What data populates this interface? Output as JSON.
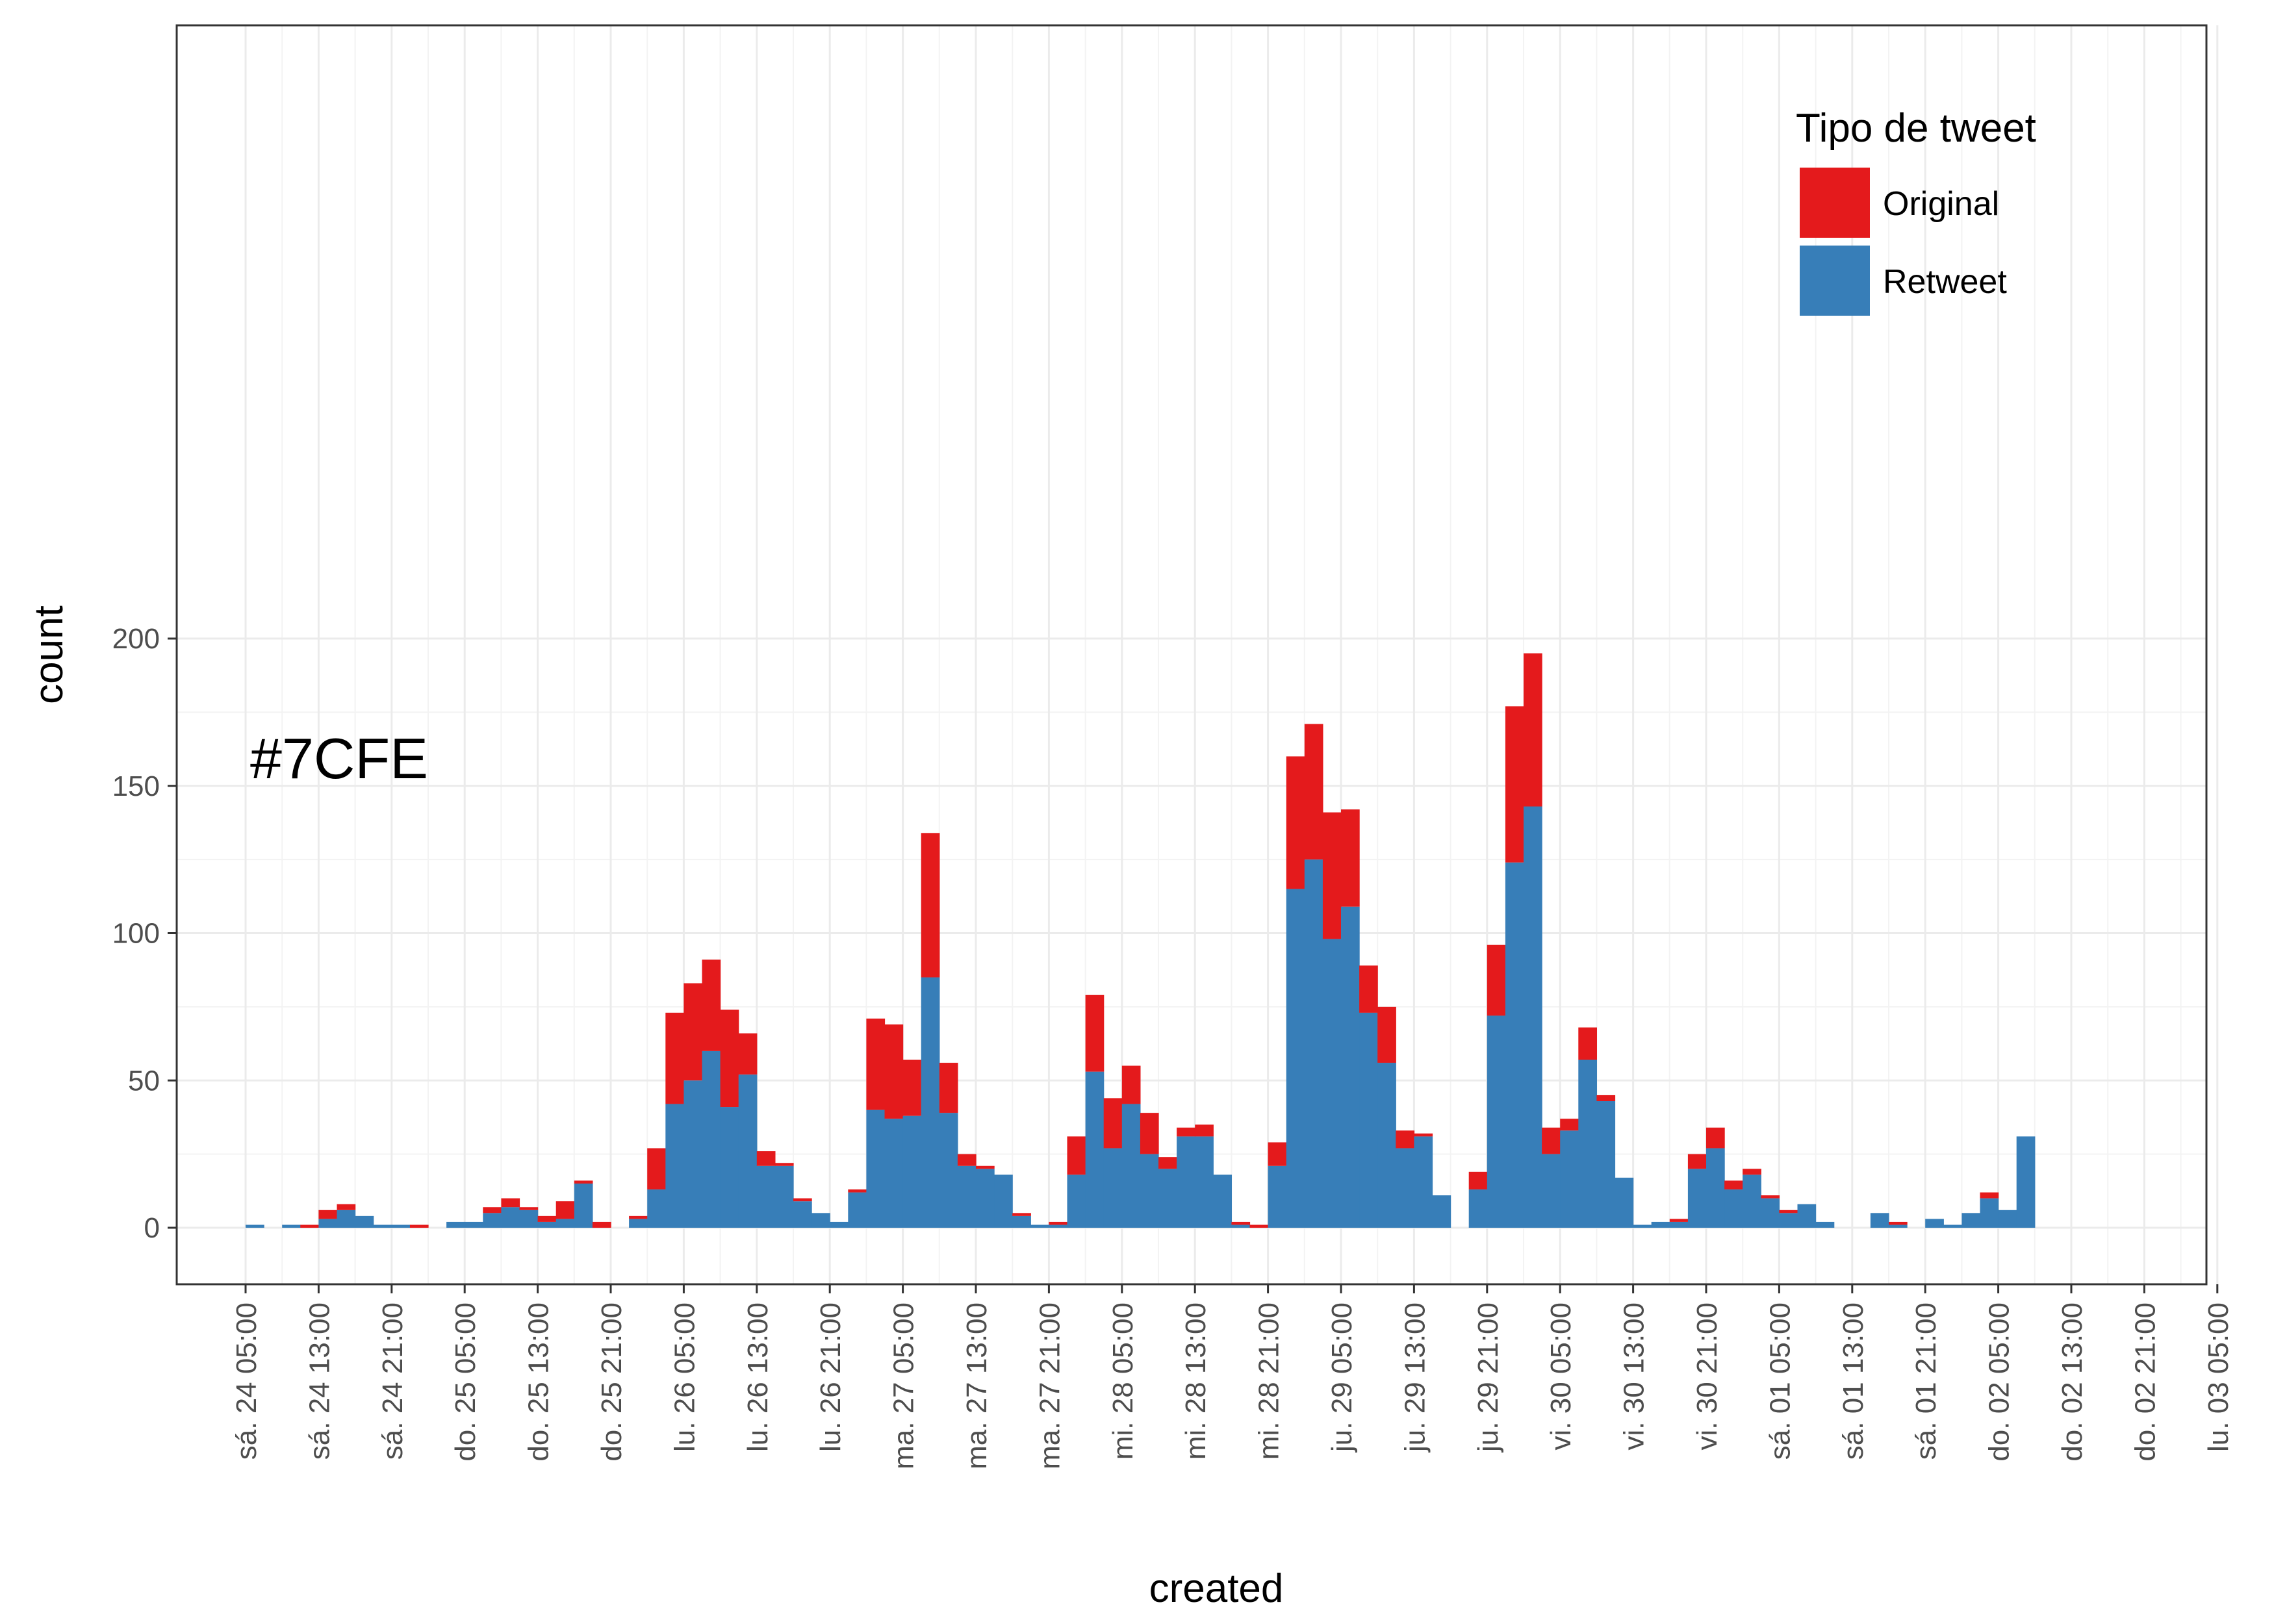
{
  "chart_data": {
    "type": "bar",
    "stacked": true,
    "xlabel": "created",
    "ylabel": "count",
    "ylim": [
      -9.6,
      204.6
    ],
    "y_ticks": [
      0,
      50,
      100,
      150,
      200
    ],
    "x_tick_labels": [
      "sá. 24 05:00",
      "sá. 24 13:00",
      "sá. 24 21:00",
      "do. 25 05:00",
      "do. 25 13:00",
      "do. 25 21:00",
      "lu. 26 05:00",
      "lu. 26 13:00",
      "lu. 26 21:00",
      "ma. 27 05:00",
      "ma. 27 13:00",
      "ma. 27 21:00",
      "mi. 28 05:00",
      "mi. 28 13:00",
      "mi. 28 21:00",
      "ju. 29 05:00",
      "ju. 29 13:00",
      "ju. 29 21:00",
      "vi. 30 05:00",
      "vi. 30 13:00",
      "vi. 30 21:00",
      "sá. 01 05:00",
      "sá. 01 13:00",
      "sá. 01 21:00",
      "do. 02 05:00",
      "do. 02 13:00",
      "do. 02 21:00",
      "lu. 03 05:00"
    ],
    "bin_hours": 2,
    "x_start_hours": 0,
    "x_end_hours": 216,
    "annotation": "#7CFE",
    "legend": {
      "title": "Tipo de tweet",
      "position": "top-right"
    },
    "grid": true,
    "series": [
      {
        "name": "Retweet",
        "color": "#377eb8",
        "values": [
          1,
          0,
          1,
          0,
          3,
          6,
          4,
          1,
          1,
          0,
          0,
          2,
          2,
          5,
          7,
          6,
          2,
          3,
          15,
          0,
          0,
          3,
          13,
          42,
          50,
          60,
          41,
          52,
          21,
          21,
          9,
          5,
          2,
          12,
          40,
          37,
          38,
          85,
          39,
          21,
          20,
          18,
          4,
          1,
          1,
          18,
          53,
          27,
          42,
          25,
          20,
          31,
          31,
          18,
          1,
          0,
          21,
          115,
          125,
          98,
          109,
          73,
          56,
          27,
          31,
          11,
          0,
          13,
          72,
          124,
          143,
          25,
          33,
          57,
          43,
          17,
          1,
          2,
          2,
          20,
          27,
          13,
          18,
          10,
          5,
          8,
          2,
          0,
          0,
          5,
          1,
          0,
          3,
          1,
          5,
          10,
          6,
          31
        ]
      },
      {
        "name": "Original",
        "color": "#e41a1c",
        "values": [
          0,
          0,
          0,
          1,
          3,
          2,
          0,
          0,
          0,
          1,
          0,
          0,
          0,
          2,
          3,
          1,
          2,
          6,
          1,
          2,
          0,
          1,
          14,
          31,
          33,
          31,
          33,
          14,
          5,
          1,
          1,
          0,
          0,
          1,
          31,
          32,
          19,
          49,
          17,
          4,
          1,
          0,
          1,
          0,
          1,
          13,
          26,
          17,
          13,
          14,
          4,
          3,
          4,
          0,
          1,
          1,
          8,
          45,
          46,
          43,
          33,
          16,
          19,
          6,
          1,
          0,
          0,
          6,
          24,
          53,
          52,
          9,
          4,
          11,
          2,
          0,
          0,
          0,
          1,
          5,
          7,
          3,
          2,
          1,
          1,
          0,
          0,
          0,
          0,
          0,
          1,
          0,
          0,
          0,
          0,
          2,
          0,
          0
        ]
      }
    ]
  }
}
